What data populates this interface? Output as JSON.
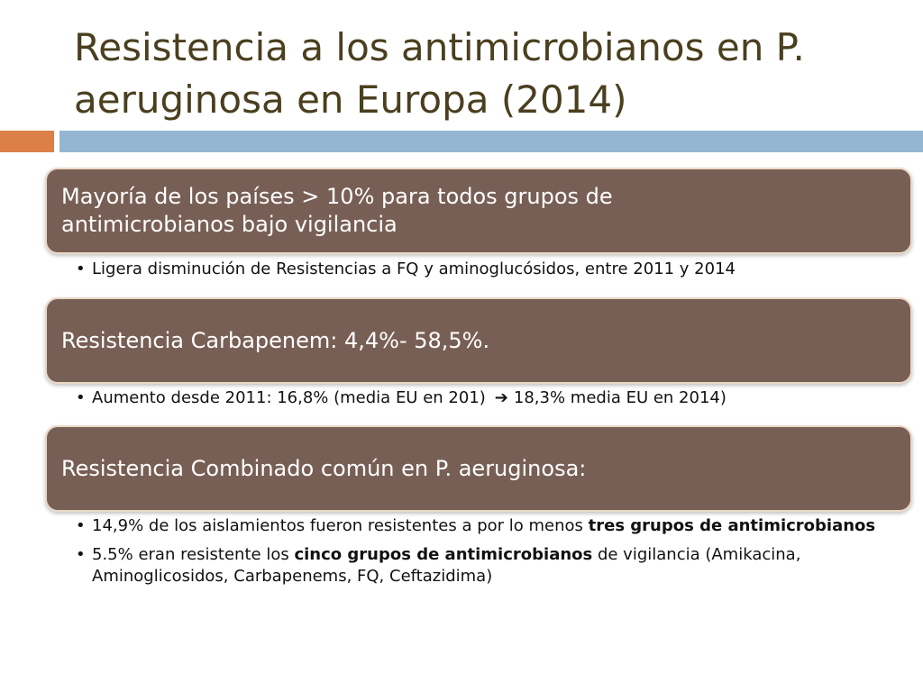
{
  "title": {
    "line1": "Resistencia a los antimicrobianos en P.",
    "line2": "aeruginosa  en Europa (2014)"
  },
  "colors": {
    "title": "#4a3f1e",
    "box": "#785f55",
    "accent_orange": "#dd8047",
    "accent_blue": "#94b6d2"
  },
  "sections": [
    {
      "heading": {
        "line1": "Mayoría de los países > 10% para todos grupos de",
        "line2": "antimicrobianos bajo vigilancia"
      },
      "bullets": [
        {
          "text": "Ligera disminución de Resistencias a FQ y aminoglucósidos, entre 2011 y 2014"
        }
      ]
    },
    {
      "heading": "Resistencia Carbapenem: 4,4%- 58,5%.",
      "bullets": [
        {
          "before_arrow": "Aumento desde 2011: 16,8% (media EU en 201)",
          "arrow_icon": "right-arrow-icon",
          "after_arrow": "18,3% media EU en 2014)"
        }
      ]
    },
    {
      "heading": "Resistencia Combinado común en P. aeruginosa:",
      "bullets": [
        {
          "before": "14,9% de los aislamientos fueron resistentes a por lo menos ",
          "bold": "tres grupos de antimicrobianos"
        },
        {
          "before": "5.5% eran resistente los ",
          "bold": "cinco grupos de antimicrobianos",
          "after": " de vigilancia (Amikacina, Aminoglicosidos, Carbapenems, FQ, Ceftazidima)"
        }
      ]
    }
  ]
}
